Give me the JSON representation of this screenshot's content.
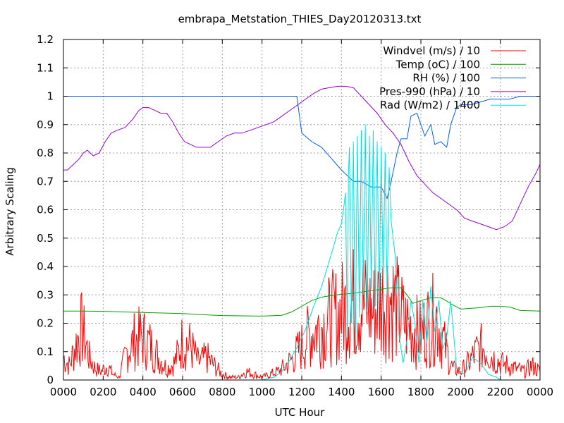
{
  "chart_data": {
    "type": "line",
    "title": "embrapa_Metstation_THIES_Day20120313.txt",
    "xlabel": "UTC Hour",
    "ylabel": "Arbitrary Scaling",
    "xlim": [
      0,
      24
    ],
    "ylim": [
      0,
      1.2
    ],
    "grid": true,
    "legend_position": "top-right",
    "x_ticks": [
      0,
      2,
      4,
      6,
      8,
      10,
      12,
      14,
      16,
      18,
      20,
      22,
      24
    ],
    "x_tick_labels": [
      "0000",
      "0200",
      "0400",
      "0600",
      "0800",
      "1000",
      "1200",
      "1400",
      "1600",
      "1800",
      "2000",
      "2200",
      "0000"
    ],
    "y_ticks": [
      0,
      0.1,
      0.2,
      0.3,
      0.4,
      0.5,
      0.6,
      0.7,
      0.8,
      0.9,
      1,
      1.1,
      1.2
    ],
    "y_tick_labels": [
      "0",
      "0.1",
      "0.2",
      "0.3",
      "0.4",
      "0.5",
      "0.6",
      "0.7",
      "0.8",
      "0.9",
      "1",
      "1.1",
      "1.2"
    ],
    "series": [
      {
        "name": "Windvel (m/s) / 10",
        "color": "#ff0000",
        "noisy": true,
        "x": [
          0,
          0.3,
          0.6,
          0.9,
          1.1,
          1.3,
          1.6,
          1.9,
          2.2,
          2.5,
          2.8,
          3.2,
          3.6,
          4.0,
          4.4,
          4.8,
          5.2,
          5.6,
          6.0,
          6.4,
          6.8,
          7.2,
          7.6,
          8.0,
          8.4,
          8.8,
          9.2,
          9.6,
          10.0,
          10.4,
          10.8,
          11.2,
          11.6,
          12.0,
          12.4,
          12.8,
          13.2,
          13.6,
          14.0,
          14.4,
          14.8,
          15.2,
          15.6,
          16.0,
          16.4,
          16.8,
          17.2,
          17.6,
          18.0,
          18.4,
          18.8,
          19.2,
          19.6,
          20.0,
          20.4,
          20.8,
          21.2,
          21.6,
          22.0,
          22.4,
          22.8,
          23.2,
          23.6,
          24.0
        ],
        "y": [
          0.08,
          0.05,
          0.12,
          0.18,
          0.14,
          0.08,
          0.04,
          0.03,
          0.05,
          0.02,
          0.01,
          0.1,
          0.14,
          0.15,
          0.12,
          0.08,
          0.04,
          0.06,
          0.14,
          0.12,
          0.06,
          0.08,
          0.05,
          0.02,
          0.01,
          0.01,
          0.03,
          0.02,
          0.01,
          0.02,
          0.03,
          0.05,
          0.08,
          0.12,
          0.16,
          0.18,
          0.2,
          0.22,
          0.24,
          0.26,
          0.28,
          0.26,
          0.24,
          0.28,
          0.3,
          0.25,
          0.2,
          0.18,
          0.16,
          0.2,
          0.22,
          0.12,
          0.04,
          0.03,
          0.06,
          0.1,
          0.12,
          0.08,
          0.06,
          0.05,
          0.04,
          0.03,
          0.05,
          0.03
        ]
      },
      {
        "name": "Temp (oC) / 100",
        "color": "#00a000",
        "noisy": false,
        "x": [
          0,
          1,
          2,
          3,
          4,
          5,
          6,
          7,
          8,
          9,
          10,
          11,
          11.5,
          12,
          12.5,
          13,
          13.5,
          14,
          14.5,
          15,
          15.5,
          16,
          16.5,
          17,
          17.3,
          17.6,
          18,
          18.5,
          19,
          19.3,
          19.6,
          20,
          21,
          21.5,
          22,
          22.5,
          23,
          24
        ],
        "y": [
          0.243,
          0.243,
          0.242,
          0.24,
          0.238,
          0.236,
          0.234,
          0.23,
          0.227,
          0.226,
          0.225,
          0.228,
          0.24,
          0.26,
          0.28,
          0.292,
          0.298,
          0.302,
          0.305,
          0.31,
          0.315,
          0.32,
          0.325,
          0.325,
          0.3,
          0.27,
          0.28,
          0.29,
          0.29,
          0.278,
          0.265,
          0.25,
          0.255,
          0.26,
          0.26,
          0.257,
          0.245,
          0.243
        ]
      },
      {
        "name": "RH (%) / 100",
        "color": "#0060e0",
        "noisy": false,
        "x": [
          0,
          2,
          4,
          6,
          8,
          10,
          11.75,
          12,
          12.5,
          13,
          13.5,
          14,
          14.3,
          14.6,
          15,
          15.5,
          16,
          16.3,
          16.5,
          16.8,
          17,
          17.3,
          17.5,
          17.8,
          18,
          18.2,
          18.5,
          18.7,
          19,
          19.3,
          19.5,
          19.8,
          20,
          20.5,
          21,
          21.5,
          22,
          22.5,
          23,
          23.5,
          24
        ],
        "y": [
          1,
          1,
          1,
          1,
          1,
          1,
          1,
          0.87,
          0.84,
          0.82,
          0.78,
          0.74,
          0.72,
          0.7,
          0.7,
          0.68,
          0.68,
          0.64,
          0.7,
          0.8,
          0.85,
          0.85,
          0.93,
          0.94,
          0.9,
          0.86,
          0.9,
          0.83,
          0.84,
          0.82,
          0.9,
          0.96,
          0.97,
          0.97,
          0.98,
          0.99,
          0.99,
          0.99,
          1,
          1,
          1
        ]
      },
      {
        "name": "Pres-990 (hPa) / 10",
        "color": "#9400d3",
        "noisy": false,
        "x": [
          0,
          0.2,
          0.5,
          0.8,
          1.0,
          1.2,
          1.5,
          1.8,
          2.1,
          2.4,
          2.7,
          3.1,
          3.5,
          3.8,
          4.0,
          4.3,
          4.6,
          4.9,
          5.2,
          5.5,
          5.8,
          6.1,
          6.4,
          6.7,
          7.0,
          7.4,
          7.8,
          8.2,
          8.6,
          9.0,
          9.4,
          9.8,
          10.2,
          10.6,
          11.0,
          11.4,
          11.8,
          12.2,
          12.6,
          13.0,
          13.4,
          13.8,
          14.2,
          14.6,
          15.0,
          15.4,
          15.8,
          16.2,
          16.6,
          17.0,
          17.4,
          17.8,
          18.2,
          18.6,
          19.0,
          19.4,
          19.8,
          20.2,
          20.6,
          21.0,
          21.4,
          21.8,
          22.2,
          22.6,
          23.0,
          23.4,
          23.8,
          24.0
        ],
        "y": [
          0.74,
          0.74,
          0.76,
          0.78,
          0.8,
          0.81,
          0.79,
          0.8,
          0.84,
          0.87,
          0.88,
          0.89,
          0.92,
          0.95,
          0.96,
          0.96,
          0.95,
          0.94,
          0.94,
          0.91,
          0.87,
          0.84,
          0.83,
          0.82,
          0.82,
          0.82,
          0.84,
          0.86,
          0.87,
          0.87,
          0.88,
          0.89,
          0.9,
          0.91,
          0.93,
          0.95,
          0.97,
          0.99,
          1.01,
          1.025,
          1.03,
          1.035,
          1.035,
          1.03,
          1.0,
          0.97,
          0.94,
          0.9,
          0.87,
          0.83,
          0.77,
          0.72,
          0.69,
          0.66,
          0.64,
          0.62,
          0.6,
          0.57,
          0.56,
          0.55,
          0.54,
          0.53,
          0.54,
          0.56,
          0.62,
          0.68,
          0.73,
          0.76
        ]
      },
      {
        "name": "Rad (W/m2) / 1400",
        "color": "#00e0e0",
        "noisy": false,
        "x": [
          0,
          2,
          4,
          6,
          8,
          9,
          10,
          10.6,
          11,
          11.4,
          11.8,
          12.2,
          12.6,
          13.0,
          13.3,
          13.6,
          13.8,
          14.0,
          14.1,
          14.2,
          14.3,
          14.35,
          14.4,
          14.5,
          14.6,
          14.7,
          14.8,
          14.9,
          15.0,
          15.1,
          15.2,
          15.3,
          15.4,
          15.5,
          15.6,
          15.7,
          15.8,
          15.9,
          16.0,
          16.1,
          16.2,
          16.3,
          16.4,
          16.5,
          16.7,
          16.9,
          17.1,
          17.3,
          17.5,
          17.7,
          17.9,
          18.1,
          18.3,
          18.5,
          18.7,
          18.9,
          19.1,
          19.3,
          19.5,
          19.8,
          20.2,
          20.6,
          21.0,
          21.4,
          21.8,
          22.0,
          24.0
        ],
        "y": [
          0,
          0,
          0,
          0,
          0,
          0,
          0,
          0.01,
          0.03,
          0.07,
          0.12,
          0.18,
          0.26,
          0.33,
          0.4,
          0.47,
          0.52,
          0.55,
          0.6,
          0.66,
          0.14,
          0.72,
          0.82,
          0.2,
          0.84,
          0.1,
          0.86,
          0.22,
          0.88,
          0.3,
          0.9,
          0.24,
          0.86,
          0.32,
          0.88,
          0.26,
          0.84,
          0.28,
          0.82,
          0.34,
          0.8,
          0.3,
          0.75,
          0.56,
          0.44,
          0.16,
          0.06,
          0.14,
          0.28,
          0.2,
          0.06,
          0.28,
          0.13,
          0.33,
          0.17,
          0.28,
          0.11,
          0.15,
          0.28,
          0.04,
          0.02,
          0.08,
          0.06,
          0.02,
          0.01,
          0,
          0
        ]
      }
    ]
  }
}
